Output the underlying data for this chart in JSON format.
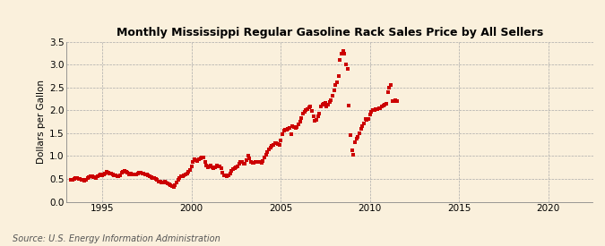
{
  "title": "Monthly Mississippi Regular Gasoline Rack Sales Price by All Sellers",
  "ylabel": "Dollars per Gallon",
  "source": "Source: U.S. Energy Information Administration",
  "background_color": "#FAF0DC",
  "plot_bg_color": "#FAF0DC",
  "marker_color": "#CC0000",
  "xlim": [
    1993.0,
    2022.5
  ],
  "ylim": [
    0.0,
    3.5
  ],
  "xticks": [
    1995,
    2000,
    2005,
    2010,
    2015,
    2020
  ],
  "yticks": [
    0.0,
    0.5,
    1.0,
    1.5,
    2.0,
    2.5,
    3.0,
    3.5
  ],
  "data": [
    [
      1993.25,
      0.47
    ],
    [
      1993.33,
      0.48
    ],
    [
      1993.42,
      0.5
    ],
    [
      1993.5,
      0.52
    ],
    [
      1993.58,
      0.51
    ],
    [
      1993.67,
      0.5
    ],
    [
      1993.75,
      0.49
    ],
    [
      1993.83,
      0.48
    ],
    [
      1993.92,
      0.47
    ],
    [
      1994.0,
      0.46
    ],
    [
      1994.08,
      0.48
    ],
    [
      1994.17,
      0.52
    ],
    [
      1994.25,
      0.54
    ],
    [
      1994.33,
      0.55
    ],
    [
      1994.42,
      0.55
    ],
    [
      1994.5,
      0.54
    ],
    [
      1994.58,
      0.53
    ],
    [
      1994.67,
      0.52
    ],
    [
      1994.75,
      0.55
    ],
    [
      1994.83,
      0.57
    ],
    [
      1994.92,
      0.59
    ],
    [
      1995.0,
      0.57
    ],
    [
      1995.08,
      0.59
    ],
    [
      1995.17,
      0.62
    ],
    [
      1995.25,
      0.65
    ],
    [
      1995.33,
      0.63
    ],
    [
      1995.42,
      0.62
    ],
    [
      1995.5,
      0.61
    ],
    [
      1995.58,
      0.6
    ],
    [
      1995.67,
      0.58
    ],
    [
      1995.75,
      0.57
    ],
    [
      1995.83,
      0.56
    ],
    [
      1995.92,
      0.55
    ],
    [
      1996.0,
      0.58
    ],
    [
      1996.08,
      0.63
    ],
    [
      1996.17,
      0.66
    ],
    [
      1996.25,
      0.67
    ],
    [
      1996.33,
      0.65
    ],
    [
      1996.42,
      0.63
    ],
    [
      1996.5,
      0.6
    ],
    [
      1996.58,
      0.61
    ],
    [
      1996.67,
      0.6
    ],
    [
      1996.75,
      0.59
    ],
    [
      1996.83,
      0.6
    ],
    [
      1996.92,
      0.6
    ],
    [
      1997.0,
      0.62
    ],
    [
      1997.08,
      0.63
    ],
    [
      1997.17,
      0.63
    ],
    [
      1997.25,
      0.62
    ],
    [
      1997.33,
      0.61
    ],
    [
      1997.42,
      0.6
    ],
    [
      1997.5,
      0.59
    ],
    [
      1997.58,
      0.57
    ],
    [
      1997.67,
      0.55
    ],
    [
      1997.75,
      0.53
    ],
    [
      1997.83,
      0.52
    ],
    [
      1997.92,
      0.51
    ],
    [
      1998.0,
      0.49
    ],
    [
      1998.08,
      0.47
    ],
    [
      1998.17,
      0.45
    ],
    [
      1998.25,
      0.44
    ],
    [
      1998.33,
      0.43
    ],
    [
      1998.42,
      0.43
    ],
    [
      1998.5,
      0.44
    ],
    [
      1998.58,
      0.43
    ],
    [
      1998.67,
      0.41
    ],
    [
      1998.75,
      0.38
    ],
    [
      1998.83,
      0.36
    ],
    [
      1998.92,
      0.34
    ],
    [
      1999.0,
      0.33
    ],
    [
      1999.08,
      0.37
    ],
    [
      1999.17,
      0.42
    ],
    [
      1999.25,
      0.48
    ],
    [
      1999.33,
      0.52
    ],
    [
      1999.42,
      0.55
    ],
    [
      1999.5,
      0.56
    ],
    [
      1999.58,
      0.58
    ],
    [
      1999.67,
      0.6
    ],
    [
      1999.75,
      0.62
    ],
    [
      1999.83,
      0.65
    ],
    [
      1999.92,
      0.7
    ],
    [
      2000.0,
      0.78
    ],
    [
      2000.08,
      0.88
    ],
    [
      2000.17,
      0.93
    ],
    [
      2000.25,
      0.91
    ],
    [
      2000.33,
      0.9
    ],
    [
      2000.42,
      0.93
    ],
    [
      2000.5,
      0.94
    ],
    [
      2000.58,
      0.96
    ],
    [
      2000.67,
      0.97
    ],
    [
      2000.75,
      0.88
    ],
    [
      2000.83,
      0.8
    ],
    [
      2000.92,
      0.75
    ],
    [
      2001.0,
      0.78
    ],
    [
      2001.08,
      0.79
    ],
    [
      2001.17,
      0.76
    ],
    [
      2001.25,
      0.74
    ],
    [
      2001.33,
      0.76
    ],
    [
      2001.42,
      0.79
    ],
    [
      2001.5,
      0.78
    ],
    [
      2001.58,
      0.77
    ],
    [
      2001.67,
      0.73
    ],
    [
      2001.75,
      0.63
    ],
    [
      2001.83,
      0.58
    ],
    [
      2001.92,
      0.57
    ],
    [
      2002.0,
      0.56
    ],
    [
      2002.08,
      0.57
    ],
    [
      2002.17,
      0.62
    ],
    [
      2002.25,
      0.68
    ],
    [
      2002.33,
      0.72
    ],
    [
      2002.42,
      0.74
    ],
    [
      2002.5,
      0.76
    ],
    [
      2002.58,
      0.78
    ],
    [
      2002.67,
      0.83
    ],
    [
      2002.75,
      0.88
    ],
    [
      2002.83,
      0.88
    ],
    [
      2002.92,
      0.83
    ],
    [
      2003.0,
      0.84
    ],
    [
      2003.08,
      0.92
    ],
    [
      2003.17,
      1.0
    ],
    [
      2003.25,
      0.95
    ],
    [
      2003.33,
      0.88
    ],
    [
      2003.42,
      0.85
    ],
    [
      2003.5,
      0.86
    ],
    [
      2003.58,
      0.88
    ],
    [
      2003.67,
      0.88
    ],
    [
      2003.75,
      0.88
    ],
    [
      2003.83,
      0.87
    ],
    [
      2003.92,
      0.86
    ],
    [
      2004.0,
      0.9
    ],
    [
      2004.08,
      0.97
    ],
    [
      2004.17,
      1.02
    ],
    [
      2004.25,
      1.08
    ],
    [
      2004.33,
      1.15
    ],
    [
      2004.42,
      1.18
    ],
    [
      2004.5,
      1.22
    ],
    [
      2004.58,
      1.25
    ],
    [
      2004.67,
      1.28
    ],
    [
      2004.75,
      1.28
    ],
    [
      2004.83,
      1.27
    ],
    [
      2004.92,
      1.24
    ],
    [
      2005.0,
      1.34
    ],
    [
      2005.08,
      1.47
    ],
    [
      2005.17,
      1.55
    ],
    [
      2005.25,
      1.57
    ],
    [
      2005.33,
      1.58
    ],
    [
      2005.42,
      1.59
    ],
    [
      2005.5,
      1.62
    ],
    [
      2005.58,
      1.47
    ],
    [
      2005.67,
      1.65
    ],
    [
      2005.75,
      1.63
    ],
    [
      2005.83,
      1.61
    ],
    [
      2005.92,
      1.64
    ],
    [
      2006.0,
      1.7
    ],
    [
      2006.08,
      1.75
    ],
    [
      2006.17,
      1.84
    ],
    [
      2006.25,
      1.93
    ],
    [
      2006.33,
      1.97
    ],
    [
      2006.42,
      2.0
    ],
    [
      2006.5,
      2.02
    ],
    [
      2006.58,
      2.07
    ],
    [
      2006.67,
      2.08
    ],
    [
      2006.75,
      1.98
    ],
    [
      2006.83,
      1.87
    ],
    [
      2006.92,
      1.78
    ],
    [
      2007.0,
      1.8
    ],
    [
      2007.08,
      1.87
    ],
    [
      2007.17,
      1.93
    ],
    [
      2007.25,
      2.08
    ],
    [
      2007.33,
      2.12
    ],
    [
      2007.42,
      2.14
    ],
    [
      2007.5,
      2.16
    ],
    [
      2007.58,
      2.09
    ],
    [
      2007.67,
      2.13
    ],
    [
      2007.75,
      2.18
    ],
    [
      2007.83,
      2.23
    ],
    [
      2007.92,
      2.33
    ],
    [
      2008.0,
      2.43
    ],
    [
      2008.08,
      2.55
    ],
    [
      2008.17,
      2.62
    ],
    [
      2008.25,
      2.75
    ],
    [
      2008.33,
      3.1
    ],
    [
      2008.42,
      3.25
    ],
    [
      2008.5,
      3.3
    ],
    [
      2008.58,
      3.25
    ],
    [
      2008.67,
      3.0
    ],
    [
      2008.75,
      2.9
    ],
    [
      2008.83,
      2.1
    ],
    [
      2008.92,
      1.45
    ],
    [
      2009.0,
      1.12
    ],
    [
      2009.08,
      1.02
    ],
    [
      2009.17,
      1.3
    ],
    [
      2009.25,
      1.38
    ],
    [
      2009.33,
      1.42
    ],
    [
      2009.42,
      1.5
    ],
    [
      2009.5,
      1.6
    ],
    [
      2009.58,
      1.65
    ],
    [
      2009.67,
      1.72
    ],
    [
      2009.75,
      1.82
    ],
    [
      2009.83,
      1.8
    ],
    [
      2009.92,
      1.82
    ],
    [
      2010.0,
      1.9
    ],
    [
      2010.08,
      1.97
    ],
    [
      2010.17,
      2.0
    ],
    [
      2010.25,
      2.0
    ],
    [
      2010.33,
      2.02
    ],
    [
      2010.42,
      2.03
    ],
    [
      2010.5,
      2.04
    ],
    [
      2010.58,
      2.05
    ],
    [
      2010.67,
      2.08
    ],
    [
      2010.75,
      2.1
    ],
    [
      2010.83,
      2.12
    ],
    [
      2010.92,
      2.15
    ],
    [
      2011.0,
      2.4
    ],
    [
      2011.08,
      2.5
    ],
    [
      2011.17,
      2.55
    ],
    [
      2011.25,
      2.2
    ],
    [
      2011.33,
      2.2
    ],
    [
      2011.42,
      2.22
    ],
    [
      2011.5,
      2.2
    ]
  ]
}
